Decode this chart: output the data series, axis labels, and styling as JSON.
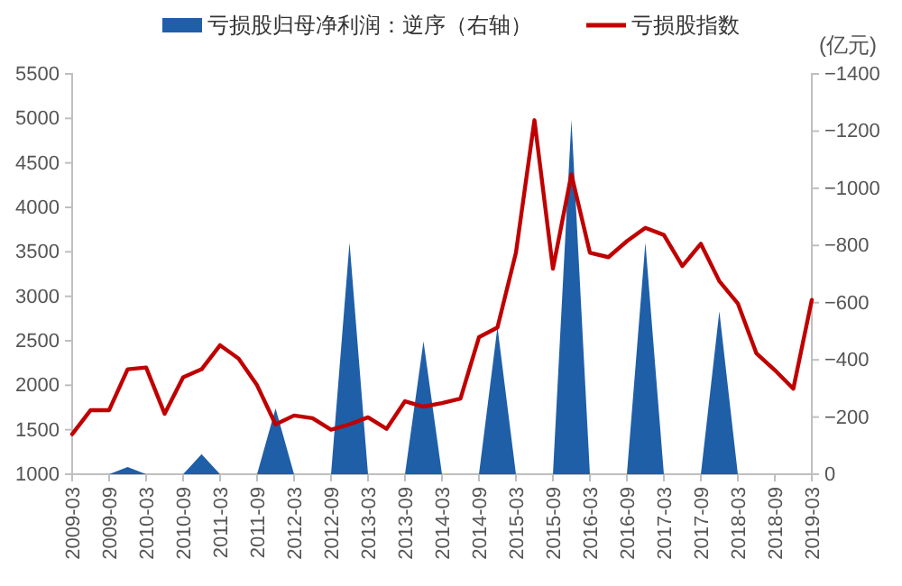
{
  "chart_data": {
    "type": "line",
    "y2label": "(亿元)",
    "categories": [
      "2009-03",
      null,
      "2009-09",
      null,
      "2010-03",
      null,
      "2010-09",
      null,
      "2011-03",
      null,
      "2011-09",
      null,
      "2012-03",
      null,
      "2012-09",
      null,
      "2013-03",
      null,
      "2013-09",
      null,
      "2014-03",
      null,
      "2014-09",
      null,
      "2015-03",
      null,
      "2015-09",
      null,
      "2016-03",
      null,
      "2016-09",
      null,
      "2017-03",
      null,
      "2017-09",
      null,
      "2018-03",
      null,
      "2018-09",
      null,
      "2019-03"
    ],
    "series": [
      {
        "name": "亏损股归母净利润：逆序（右轴）",
        "type": "area",
        "axis": "y2",
        "color": "#1f5fa8",
        "values": [
          0,
          0,
          0,
          -25,
          0,
          0,
          0,
          -70,
          0,
          0,
          0,
          -230,
          0,
          0,
          0,
          -810,
          0,
          0,
          0,
          -465,
          0,
          0,
          0,
          -515,
          0,
          0,
          0,
          -1240,
          0,
          0,
          0,
          -810,
          0,
          0,
          0,
          -570,
          0,
          0,
          0,
          0,
          0
        ]
      },
      {
        "name": "亏损股指数",
        "color": "#c00000",
        "values": [
          1450,
          1720,
          1720,
          2180,
          2200,
          1680,
          2090,
          2180,
          2450,
          2300,
          2000,
          1560,
          1660,
          1630,
          1500,
          1560,
          1640,
          1510,
          1820,
          1760,
          1800,
          1850,
          2540,
          2650,
          3490,
          4980,
          3310,
          4370,
          3490,
          3440,
          3620,
          3770,
          3690,
          3340,
          3590,
          3170,
          2920,
          2360,
          2170,
          1960,
          2960
        ]
      }
    ],
    "ylim": [
      1000,
      5500
    ],
    "yticks": [
      1000,
      1500,
      2000,
      2500,
      3000,
      3500,
      4000,
      4500,
      5000,
      5500
    ],
    "y2lim": [
      0,
      -1400
    ],
    "y2ticks": [
      0,
      -200,
      -400,
      -600,
      -800,
      -1000,
      -1200,
      -1400
    ],
    "grid": false,
    "legend": "top"
  }
}
